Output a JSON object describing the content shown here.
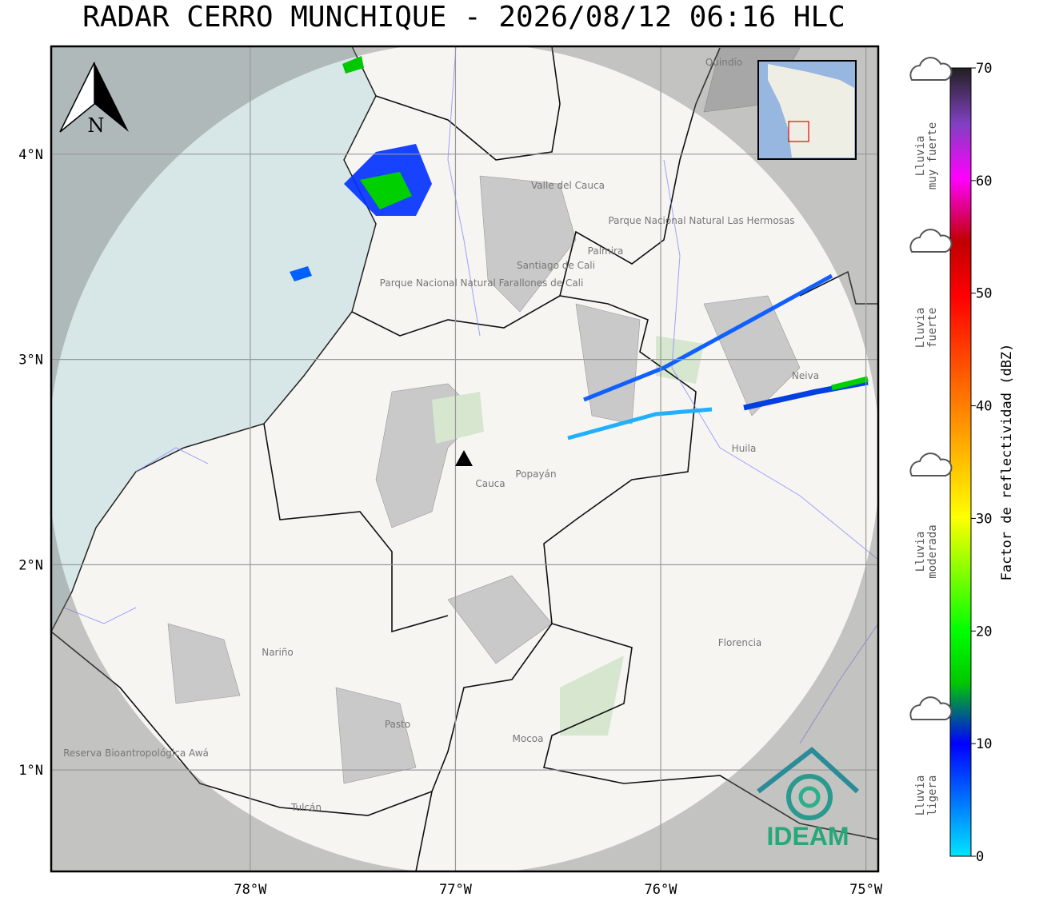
{
  "title": "RADAR CERRO MUNCHIQUE - 2026/08/12 06:16 HLC",
  "map": {
    "north_label": "N",
    "lon_ticks": [
      {
        "value": -78,
        "label": "78°W"
      },
      {
        "value": -77,
        "label": "77°W"
      },
      {
        "value": -76,
        "label": "76°W"
      },
      {
        "value": -75,
        "label": "75°W"
      }
    ],
    "lat_ticks": [
      {
        "value": 4,
        "label": "4°N"
      },
      {
        "value": 3,
        "label": "3°N"
      },
      {
        "value": 2,
        "label": "2°N"
      },
      {
        "value": 1,
        "label": "1°N"
      }
    ],
    "xlim": [
      -78.97,
      -74.94
    ],
    "ylim": [
      0.506,
      4.525
    ],
    "places": [
      "Quindío",
      "Valle del Cauca",
      "Parque Nacional Natural Las Hermosas",
      "Santiago de Cali",
      "Palmira",
      "Parque Nacional Natural Farallones de Cali",
      "Neiva",
      "Huila",
      "Cauca",
      "Popayán",
      "Nariño",
      "Florencia",
      "Pasto",
      "Mocoa",
      "Tulcán",
      "Reserva Bioantropológica Awá"
    ],
    "logo": "IDEAM"
  },
  "colorbar": {
    "label": "Factor de reflectividad (dBZ)",
    "ticks": [
      0,
      10,
      20,
      30,
      40,
      50,
      60,
      70
    ],
    "lim": [
      0,
      70
    ]
  },
  "rain_classes": [
    [
      "Lluvia",
      "ligera"
    ],
    [
      "Lluvia",
      "moderada"
    ],
    [
      "Lluvia",
      "fuerte"
    ],
    [
      "Lluvia",
      "muy fuerte"
    ]
  ]
}
